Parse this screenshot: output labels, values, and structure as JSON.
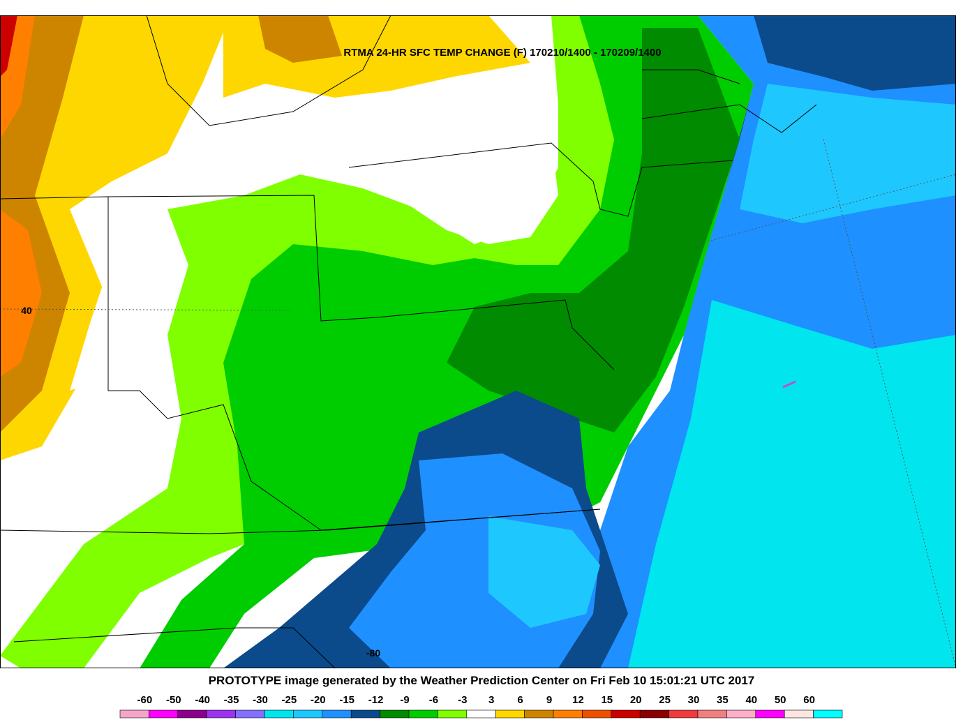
{
  "map": {
    "title": "RTMA 24-HR SFC TEMP CHANGE (F) 170210/1400 - 170209/1400",
    "lat_label": "40",
    "lon_label": "-80",
    "footer": "PROTOTYPE image generated by the Weather Prediction Center on Fri Feb 10 15:01:21 UTC 2017"
  },
  "legend": {
    "labels": [
      "-60",
      "-50",
      "-40",
      "-35",
      "-30",
      "-25",
      "-20",
      "-15",
      "-12",
      "-9",
      "-6",
      "-3",
      "3",
      "6",
      "9",
      "12",
      "15",
      "20",
      "25",
      "30",
      "35",
      "40",
      "50",
      "60"
    ],
    "colors": [
      "#f4a6c8",
      "#ff00ff",
      "#8b008b",
      "#9a32f0",
      "#8470ff",
      "#00e5ee",
      "#1ec8ff",
      "#1e90ff",
      "#0b4a8b",
      "#008b00",
      "#00cd00",
      "#7fff00",
      "#ffffff",
      "#ffd700",
      "#cd8500",
      "#ff7f00",
      "#ee5000",
      "#cd0000",
      "#8b0000",
      "#ee3b3b",
      "#f08080",
      "#ffaec9",
      "#ff00ff",
      "#ffe4e1",
      "#00ffff"
    ]
  }
}
